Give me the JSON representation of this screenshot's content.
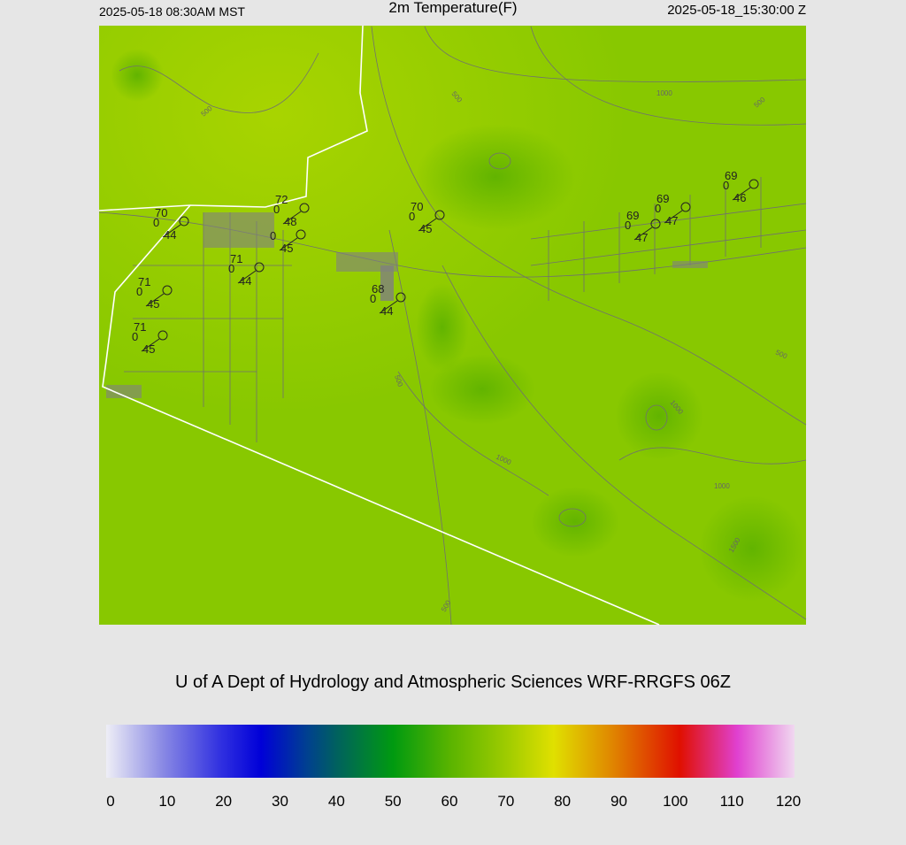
{
  "header": {
    "valid_local": "2025-05-18 08:30AM MST",
    "title": "2m Temperature(F)",
    "valid_utc": "2025-05-18_15:30:00 Z"
  },
  "stations": [
    {
      "temp": 70,
      "wind": 0,
      "dewpoint": 44
    },
    {
      "temp": 72,
      "wind": 0,
      "dewpoint": 48
    },
    {
      "wind": 0,
      "dewpoint": 45
    },
    {
      "temp": 71,
      "wind": 0,
      "dewpoint": 44
    },
    {
      "temp": 71,
      "wind": 0,
      "dewpoint": 45
    },
    {
      "temp": 71,
      "wind": 0,
      "dewpoint": 45
    },
    {
      "temp": 68,
      "wind": 0,
      "dewpoint": 44
    },
    {
      "temp": 70,
      "wind": 0,
      "dewpoint": 45
    },
    {
      "temp": 69,
      "wind": 0,
      "dewpoint": 47
    },
    {
      "temp": 69,
      "wind": 0,
      "dewpoint": 47
    },
    {
      "temp": 69,
      "wind": 0,
      "dewpoint": 46
    }
  ],
  "contour_labels": [
    500,
    500,
    1000,
    500,
    500,
    1000,
    500,
    1000,
    1000,
    1500,
    500
  ],
  "credit": "U of A Dept of Hydrology and Atmospheric Sciences WRF-RRGFS 06Z",
  "colorbar": {
    "range": [
      0,
      120
    ],
    "ticks": [
      0,
      10,
      20,
      30,
      40,
      50,
      60,
      70,
      80,
      90,
      100,
      110,
      120
    ],
    "colors": [
      {
        "value": 0,
        "color": "#eeeef6"
      },
      {
        "value": 10,
        "color": "#8888e4"
      },
      {
        "value": 20,
        "color": "#3030e0"
      },
      {
        "value": 27,
        "color": "#0000d8"
      },
      {
        "value": 35,
        "color": "#004090"
      },
      {
        "value": 40,
        "color": "#006060"
      },
      {
        "value": 50,
        "color": "#009a10"
      },
      {
        "value": 60,
        "color": "#5ab400"
      },
      {
        "value": 70,
        "color": "#a0cc00"
      },
      {
        "value": 78,
        "color": "#e0e000"
      },
      {
        "value": 88,
        "color": "#e08800"
      },
      {
        "value": 100,
        "color": "#e01000"
      },
      {
        "value": 110,
        "color": "#e040d0"
      },
      {
        "value": 120,
        "color": "#f0d8f0"
      }
    ]
  }
}
